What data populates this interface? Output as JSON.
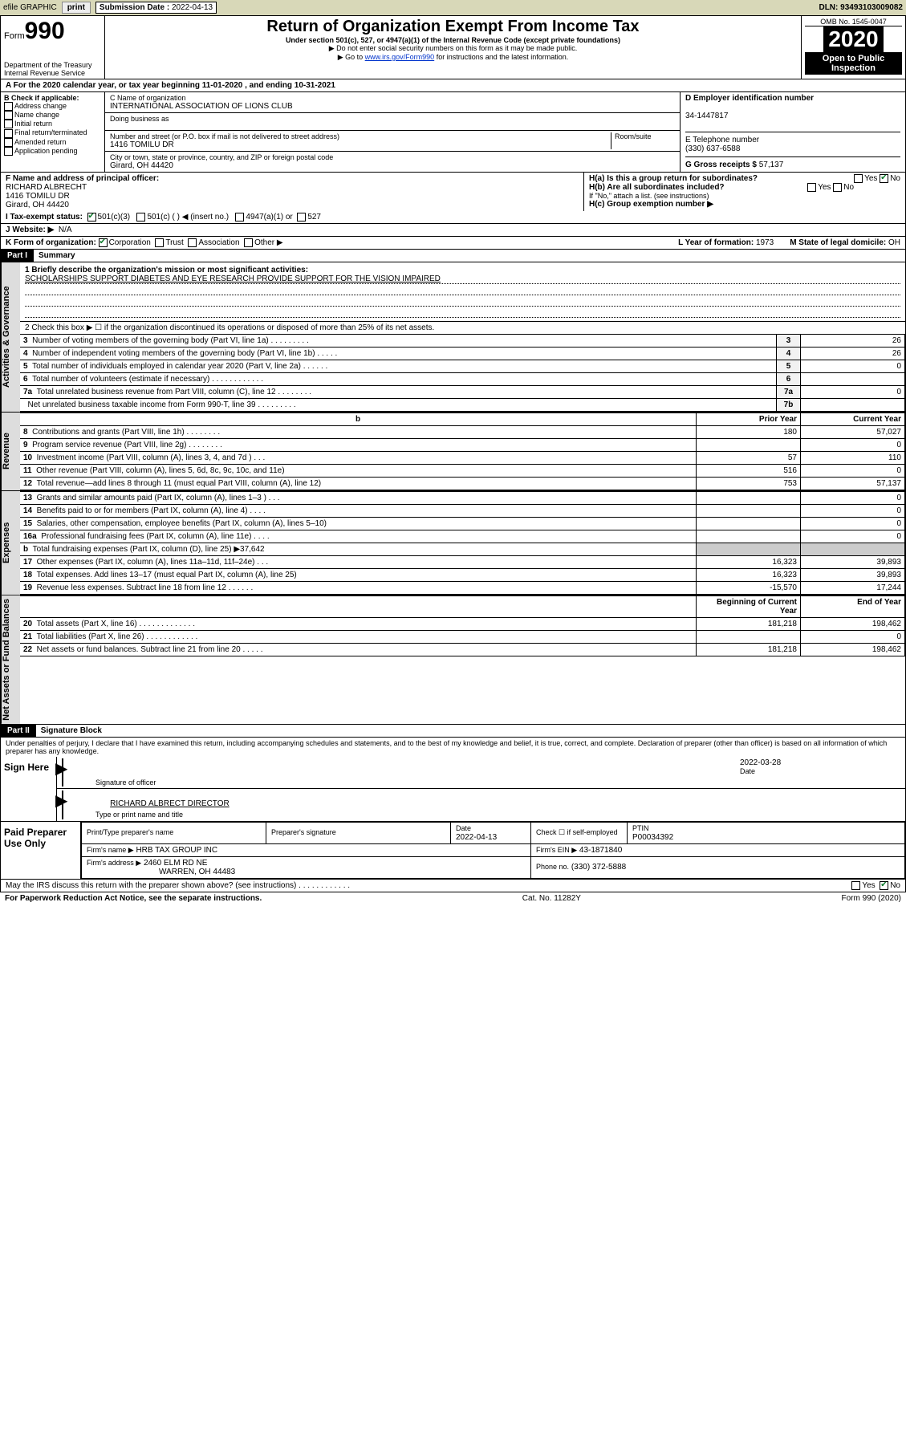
{
  "topbar": {
    "efile": "efile GRAPHIC",
    "print": "print",
    "sub_label": "Submission Date :",
    "sub_date": "2022-04-13",
    "dln": "DLN: 93493103009082"
  },
  "header": {
    "form_prefix": "Form",
    "form_num": "990",
    "title": "Return of Organization Exempt From Income Tax",
    "sub1": "Under section 501(c), 527, or 4947(a)(1) of the Internal Revenue Code (except private foundations)",
    "sub2": "▶ Do not enter social security numbers on this form as it may be made public.",
    "sub3_pre": "▶ Go to ",
    "sub3_link": "www.irs.gov/Form990",
    "sub3_post": " for instructions and the latest information.",
    "dept": "Department of the Treasury\nInternal Revenue Service",
    "omb": "OMB No. 1545-0047",
    "year": "2020",
    "open": "Open to Public Inspection"
  },
  "periodA": "A For the 2020 calendar year, or tax year beginning 11-01-2020    , and ending 10-31-2021",
  "B": {
    "title": "B Check if applicable:",
    "opts": [
      "Address change",
      "Name change",
      "Initial return",
      "Final return/terminated",
      "Amended return",
      "Application pending"
    ]
  },
  "C": {
    "name_lbl": "C Name of organization",
    "name": "INTERNATIONAL ASSOCIATION OF LIONS CLUB",
    "dba_lbl": "Doing business as",
    "addr_lbl": "Number and street (or P.O. box if mail is not delivered to street address)",
    "room_lbl": "Room/suite",
    "addr": "1416 TOMILU DR",
    "city_lbl": "City or town, state or province, country, and ZIP or foreign postal code",
    "city": "Girard, OH  44420"
  },
  "D": {
    "lbl": "D Employer identification number",
    "val": "34-1447817"
  },
  "E": {
    "lbl": "E Telephone number",
    "val": "(330) 637-6588"
  },
  "G": {
    "lbl": "G Gross receipts $",
    "val": "57,137"
  },
  "F": {
    "lbl": "F Name and address of principal officer:",
    "name": "RICHARD ALBRECHT",
    "addr1": "1416 TOMILU DR",
    "addr2": "Girard, OH  44420"
  },
  "H": {
    "a_lbl": "H(a)  Is this a group return for subordinates?",
    "b_lbl": "H(b)  Are all subordinates included?",
    "b_note": "If \"No,\" attach a list. (see instructions)",
    "c_lbl": "H(c)  Group exemption number ▶",
    "yes": "Yes",
    "no": "No"
  },
  "I": {
    "lbl": "I    Tax-exempt status:",
    "opts": [
      "501(c)(3)",
      "501(c) (   ) ◀ (insert no.)",
      "4947(a)(1) or",
      "527"
    ]
  },
  "J": {
    "lbl": "J   Website: ▶",
    "val": "N/A"
  },
  "K": {
    "lbl": "K Form of organization:",
    "opts": [
      "Corporation",
      "Trust",
      "Association",
      "Other ▶"
    ]
  },
  "L": {
    "lbl": "L Year of formation:",
    "val": "1973"
  },
  "M": {
    "lbl": "M State of legal domicile:",
    "val": "OH"
  },
  "part1": {
    "hdr": "Part I",
    "title": "Summary",
    "line1_lbl": "1  Briefly describe the organization's mission or most significant activities:",
    "line1_val": "SCHOLARSHIPS SUPPORT DIABETES AND EYE RESEARCH PROVIDE SUPPORT FOR THE VISION IMPAIRED",
    "line2": "2   Check this box ▶ ☐  if the organization discontinued its operations or disposed of more than 25% of its net assets.",
    "gov_rows": [
      {
        "n": "3",
        "t": "Number of voting members of the governing body (Part VI, line 1a)  .    .    .    .    .    .    .    .    .",
        "r": "3",
        "v": "26"
      },
      {
        "n": "4",
        "t": "Number of independent voting members of the governing body (Part VI, line 1b)   .    .    .    .    .",
        "r": "4",
        "v": "26"
      },
      {
        "n": "5",
        "t": "Total number of individuals employed in calendar year 2020 (Part V, line 2a)    .    .    .    .    .    .",
        "r": "5",
        "v": "0"
      },
      {
        "n": "6",
        "t": "Total number of volunteers (estimate if necessary)   .    .    .    .    .    .    .    .    .    .    .    .",
        "r": "6",
        "v": ""
      },
      {
        "n": "7a",
        "t": "Total unrelated business revenue from Part VIII, column (C), line 12   .    .    .    .    .    .    .    .",
        "r": "7a",
        "v": "0"
      },
      {
        "n": "",
        "t": "Net unrelated business taxable income from Form 990-T, line 39   .    .    .    .    .    .    .    .    .",
        "r": "7b",
        "v": ""
      }
    ],
    "rev_hdr_b": "b",
    "col_prior": "Prior Year",
    "col_curr": "Current Year",
    "rev_rows": [
      {
        "n": "8",
        "t": "Contributions and grants (Part VIII, line 1h)    .    .    .    .    .    .    .    .",
        "p": "180",
        "c": "57,027"
      },
      {
        "n": "9",
        "t": "Program service revenue (Part VIII, line 2g)    .    .    .    .    .    .    .    .",
        "p": "",
        "c": "0"
      },
      {
        "n": "10",
        "t": "Investment income (Part VIII, column (A), lines 3, 4, and 7d )    .    .    .",
        "p": "57",
        "c": "110"
      },
      {
        "n": "11",
        "t": "Other revenue (Part VIII, column (A), lines 5, 6d, 8c, 9c, 10c, and 11e)",
        "p": "516",
        "c": "0"
      },
      {
        "n": "12",
        "t": "Total revenue—add lines 8 through 11 (must equal Part VIII, column (A), line 12)",
        "p": "753",
        "c": "57,137"
      }
    ],
    "exp_rows": [
      {
        "n": "13",
        "t": "Grants and similar amounts paid (Part IX, column (A), lines 1–3 )    .    .    .",
        "p": "",
        "c": "0"
      },
      {
        "n": "14",
        "t": "Benefits paid to or for members (Part IX, column (A), line 4)    .    .    .    .",
        "p": "",
        "c": "0"
      },
      {
        "n": "15",
        "t": "Salaries, other compensation, employee benefits (Part IX, column (A), lines 5–10)",
        "p": "",
        "c": "0"
      },
      {
        "n": "16a",
        "t": "Professional fundraising fees (Part IX, column (A), line 11e)    .    .    .    .",
        "p": "",
        "c": "0"
      },
      {
        "n": "b",
        "t": "Total fundraising expenses (Part IX, column (D), line 25) ▶37,642",
        "p": "shade",
        "c": "shade"
      },
      {
        "n": "17",
        "t": "Other expenses (Part IX, column (A), lines 11a–11d, 11f–24e)   .    .    .",
        "p": "16,323",
        "c": "39,893"
      },
      {
        "n": "18",
        "t": "Total expenses. Add lines 13–17 (must equal Part IX, column (A), line 25)",
        "p": "16,323",
        "c": "39,893"
      },
      {
        "n": "19",
        "t": "Revenue less expenses. Subtract line 18 from line 12   .    .    .    .    .    .",
        "p": "-15,570",
        "c": "17,244"
      }
    ],
    "col_beg": "Beginning of Current Year",
    "col_end": "End of Year",
    "net_rows": [
      {
        "n": "20",
        "t": "Total assets (Part X, line 16)   .    .    .    .    .    .    .    .    .    .    .    .    .",
        "p": "181,218",
        "c": "198,462"
      },
      {
        "n": "21",
        "t": "Total liabilities (Part X, line 26)   .    .    .    .    .    .    .    .    .    .    .    .",
        "p": "",
        "c": "0"
      },
      {
        "n": "22",
        "t": "Net assets or fund balances. Subtract line 21 from line 20   .    .    .    .    .",
        "p": "181,218",
        "c": "198,462"
      }
    ]
  },
  "part2": {
    "hdr": "Part II",
    "title": "Signature Block",
    "decl": "Under penalties of perjury, I declare that I have examined this return, including accompanying schedules and statements, and to the best of my knowledge and belief, it is true, correct, and complete. Declaration of preparer (other than officer) is based on all information of which preparer has any knowledge."
  },
  "sign": {
    "lbl": "Sign Here",
    "sig_lbl": "Signature of officer",
    "date_lbl": "Date",
    "date": "2022-03-28",
    "name": "RICHARD ALBRECT  DIRECTOR",
    "name_lbl": "Type or print name and title"
  },
  "prep": {
    "lbl": "Paid Preparer Use Only",
    "h1": "Print/Type preparer's name",
    "h2": "Preparer's signature",
    "h3": "Date",
    "h3v": "2022-04-13",
    "h4": "Check ☐ if self-employed",
    "h5": "PTIN",
    "h5v": "P00034392",
    "firm_lbl": "Firm's name    ▶",
    "firm": "HRB TAX GROUP INC",
    "ein_lbl": "Firm's EIN ▶",
    "ein": "43-1871840",
    "addr_lbl": "Firm's address ▶",
    "addr1": "2460 ELM RD NE",
    "addr2": "WARREN, OH  44483",
    "phone_lbl": "Phone no.",
    "phone": "(330) 372-5888"
  },
  "discuss": {
    "q": "May the IRS discuss this return with the preparer shown above? (see instructions)    .    .    .    .    .    .    .    .    .    .    .    .",
    "yes": "Yes",
    "no": "No"
  },
  "footer": {
    "l": "For Paperwork Reduction Act Notice, see the separate instructions.",
    "m": "Cat. No. 11282Y",
    "r": "Form 990 (2020)"
  },
  "vlabels": {
    "gov": "Activities & Governance",
    "rev": "Revenue",
    "exp": "Expenses",
    "net": "Net Assets or Fund Balances"
  }
}
